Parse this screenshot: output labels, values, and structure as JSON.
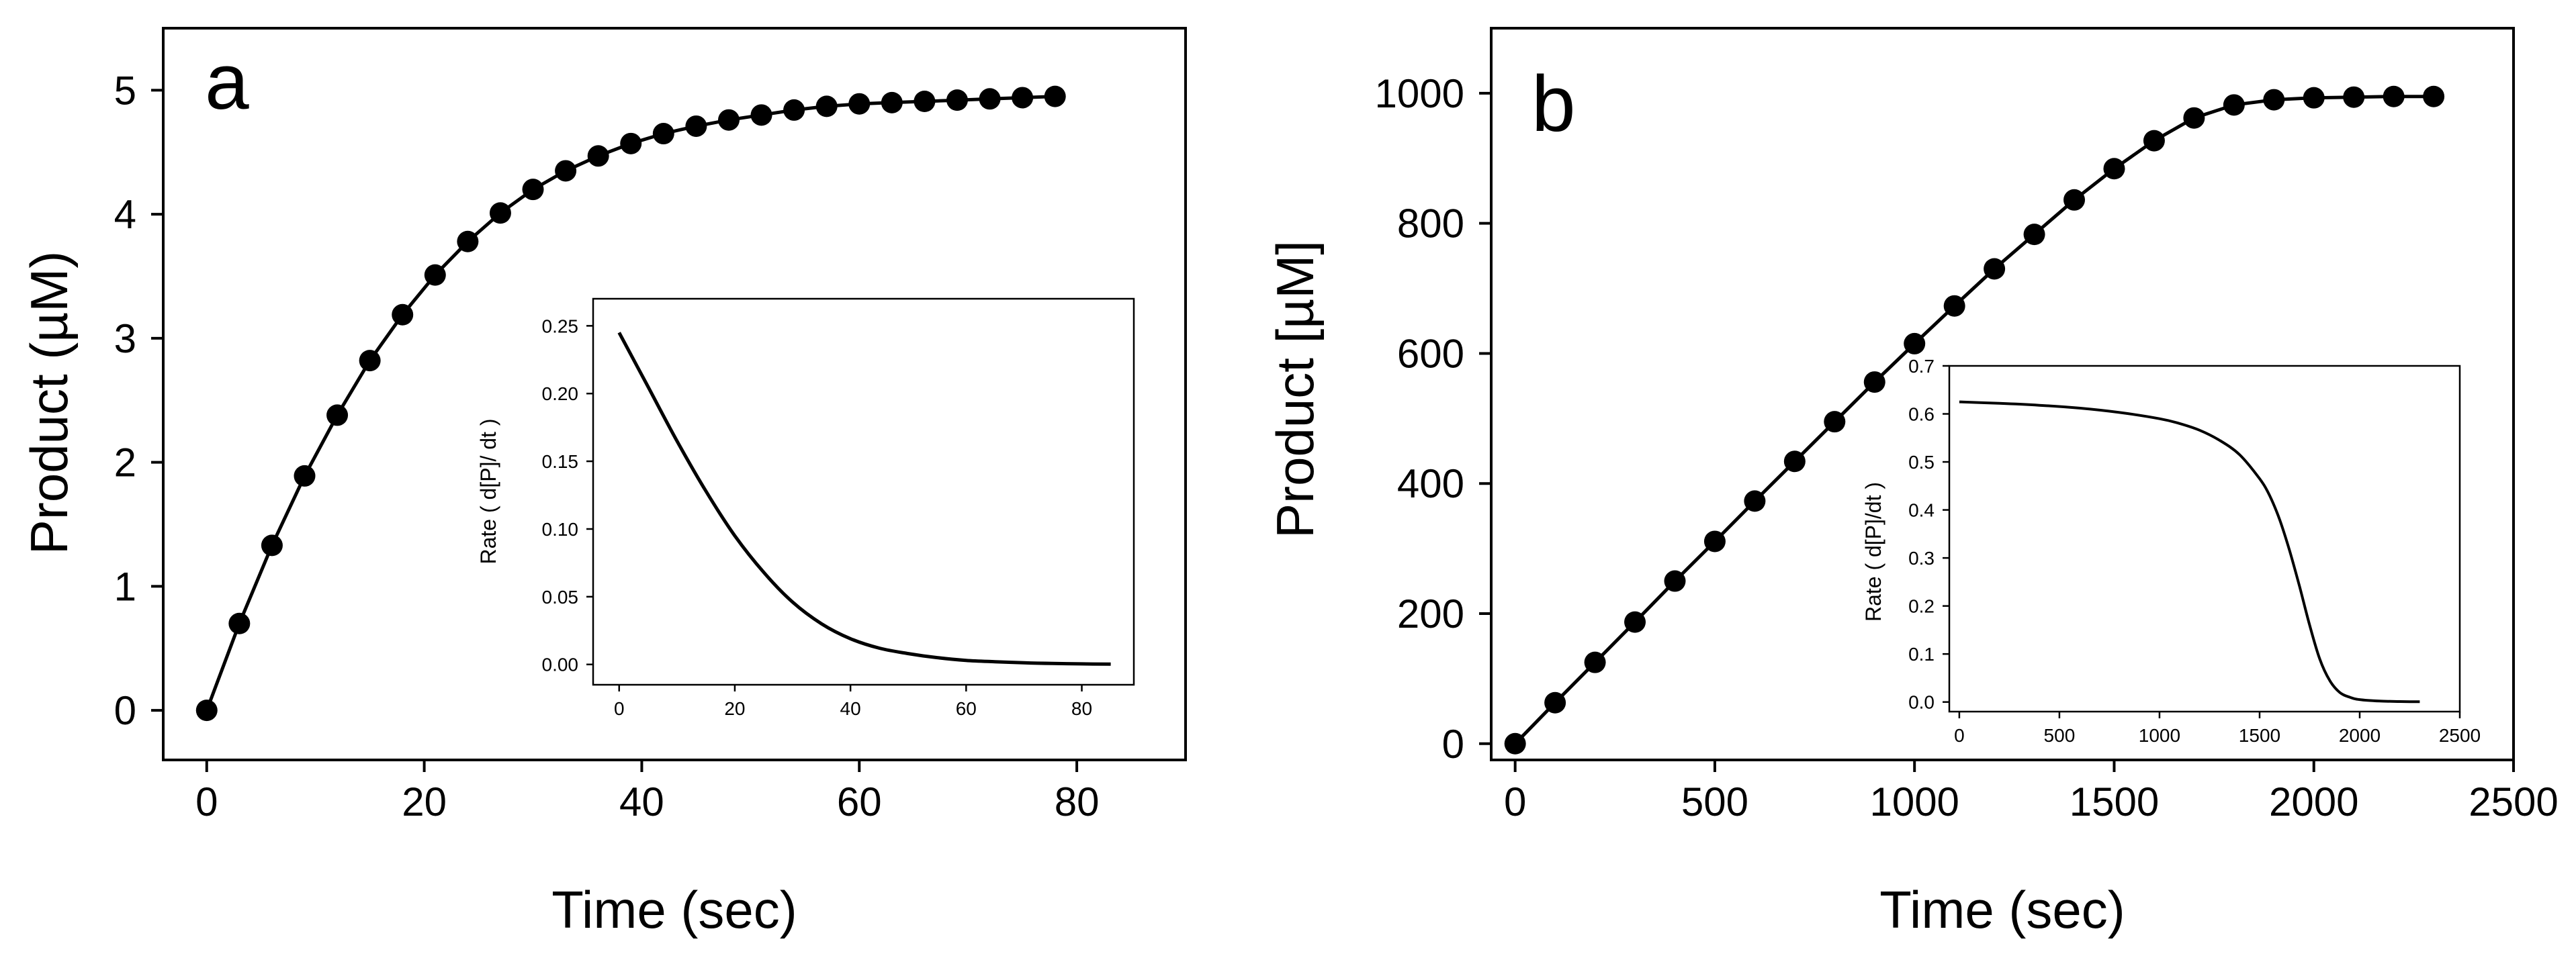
{
  "colors": {
    "line": "#000000",
    "marker": "#000000",
    "background": "#ffffff"
  },
  "chart_data": [
    {
      "panel": "a",
      "type": "line",
      "marker": "circle",
      "title": "",
      "xlabel": "Time  (sec)",
      "ylabel": "Product  (µM)",
      "xlim": [
        -4,
        90
      ],
      "ylim": [
        -0.4,
        5.5
      ],
      "xticks": [
        0,
        20,
        40,
        60,
        80
      ],
      "yticks": [
        0,
        1,
        2,
        3,
        4,
        5
      ],
      "x": [
        0,
        3,
        6,
        9,
        12,
        15,
        18,
        21,
        24,
        27,
        30,
        33,
        36,
        39,
        42,
        45,
        48,
        51,
        54,
        57,
        60,
        63,
        66,
        69,
        72,
        75,
        78
      ],
      "y": [
        0,
        0.7,
        1.33,
        1.89,
        2.38,
        2.82,
        3.19,
        3.51,
        3.78,
        4.01,
        4.2,
        4.35,
        4.47,
        4.57,
        4.65,
        4.71,
        4.76,
        4.8,
        4.84,
        4.87,
        4.89,
        4.9,
        4.91,
        4.92,
        4.93,
        4.94,
        4.95
      ],
      "inset": {
        "type": "line",
        "xlabel": "",
        "ylabel": "Rate  ( d[P]/ dt )",
        "xlim": [
          -4.5,
          89
        ],
        "ylim": [
          -0.015,
          0.27
        ],
        "xticks": [
          0,
          20,
          40,
          60,
          80
        ],
        "xticklabels": [
          "0",
          "20",
          "40",
          "60",
          "80"
        ],
        "yticks": [
          0.0,
          0.05,
          0.1,
          0.15,
          0.2,
          0.25
        ],
        "yticklabels": [
          "0.00",
          "0.05",
          "0.10",
          "0.15",
          "0.20",
          "0.25"
        ],
        "x": [
          0,
          5,
          10,
          15,
          20,
          25,
          30,
          35,
          40,
          45,
          50,
          55,
          60,
          65,
          70,
          75,
          80,
          85
        ],
        "y": [
          0.245,
          0.205,
          0.165,
          0.128,
          0.095,
          0.068,
          0.046,
          0.03,
          0.019,
          0.012,
          0.008,
          0.005,
          0.003,
          0.002,
          0.0012,
          0.0007,
          0.0004,
          0.0002
        ]
      }
    },
    {
      "panel": "b",
      "type": "line",
      "marker": "circle",
      "title": "",
      "xlabel": "Time  (sec)",
      "ylabel": "Product  [µM]",
      "xlim": [
        -60,
        2500
      ],
      "ylim": [
        -25,
        1100
      ],
      "xticks": [
        0,
        500,
        1000,
        1500,
        2000,
        2500
      ],
      "yticks": [
        0,
        200,
        400,
        600,
        800,
        1000
      ],
      "x": [
        0,
        100,
        200,
        300,
        400,
        500,
        600,
        700,
        800,
        900,
        1000,
        1100,
        1200,
        1300,
        1400,
        1500,
        1600,
        1700,
        1800,
        1900,
        2000,
        2100,
        2200,
        2300
      ],
      "y": [
        0,
        63,
        125,
        187,
        250,
        311,
        373,
        434,
        495,
        556,
        615,
        673,
        730,
        783,
        836,
        884,
        927,
        962,
        982,
        990,
        993,
        994,
        995,
        995
      ],
      "inset": {
        "type": "line",
        "xlabel": "",
        "ylabel": "Rate  ( d[P]/dt )",
        "xlim": [
          -50,
          2500
        ],
        "ylim": [
          -0.02,
          0.7
        ],
        "xticks": [
          0,
          500,
          1000,
          1500,
          2000,
          2500
        ],
        "xticklabels": [
          "0",
          "500",
          "1000",
          "1500",
          "2000",
          "2500"
        ],
        "yticks": [
          0.0,
          0.1,
          0.2,
          0.3,
          0.4,
          0.5,
          0.6,
          0.7
        ],
        "yticklabels": [
          "0.0",
          "0.1",
          "0.2",
          "0.3",
          "0.4",
          "0.5",
          "0.6",
          "0.7"
        ],
        "x": [
          0,
          200,
          400,
          600,
          800,
          1000,
          1100,
          1200,
          1300,
          1400,
          1500,
          1550,
          1600,
          1650,
          1700,
          1750,
          1800,
          1850,
          1900,
          1950,
          2000,
          2100,
          2200,
          2300
        ],
        "y": [
          0.625,
          0.622,
          0.618,
          0.612,
          0.603,
          0.59,
          0.58,
          0.566,
          0.545,
          0.515,
          0.465,
          0.43,
          0.38,
          0.315,
          0.24,
          0.16,
          0.09,
          0.045,
          0.02,
          0.01,
          0.005,
          0.002,
          0.001,
          0.0005
        ]
      }
    }
  ]
}
